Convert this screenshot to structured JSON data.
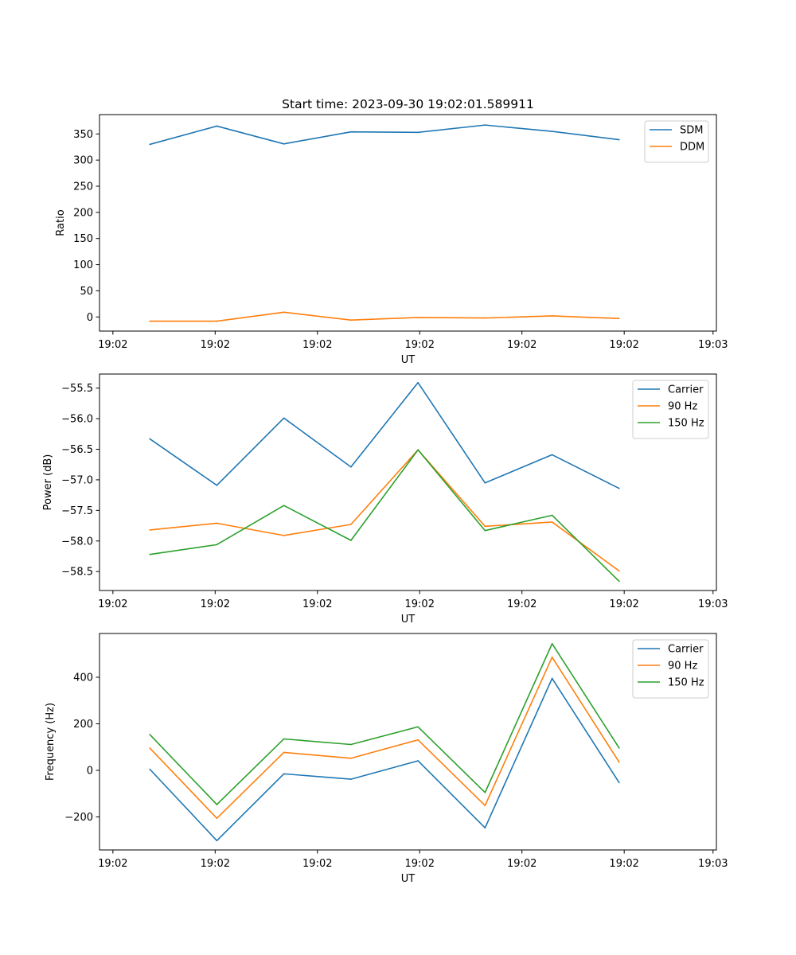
{
  "chart_data": [
    {
      "type": "line",
      "title": "Start time: 2023-09-30 19:02:01.589911",
      "xlabel": "UT",
      "ylabel": "Ratio",
      "x": [
        1,
        2,
        3,
        4,
        5,
        6,
        7,
        8
      ],
      "xlim": [
        0.25,
        9.45
      ],
      "xticks": [
        0.45,
        1.975,
        3.5,
        5.025,
        6.55,
        8.075,
        9.4
      ],
      "xtick_labels": [
        "19:02",
        "19:02",
        "19:02",
        "19:02",
        "19:02",
        "19:02",
        "19:03"
      ],
      "ylim": [
        -27,
        387
      ],
      "yticks": [
        0,
        50,
        100,
        150,
        200,
        250,
        300,
        350
      ],
      "ytick_labels": [
        "0",
        "50",
        "100",
        "150",
        "200",
        "250",
        "300",
        "350"
      ],
      "legend": "top-right",
      "series": [
        {
          "name": "SDM",
          "color": "#1f77b4",
          "values": [
            330,
            365,
            331,
            354,
            353,
            367,
            355,
            339
          ]
        },
        {
          "name": "DDM",
          "color": "#ff7f0e",
          "values": [
            -8,
            -8,
            9,
            -6,
            -1,
            -2,
            2,
            -3
          ]
        }
      ]
    },
    {
      "type": "line",
      "title": "",
      "xlabel": "UT",
      "ylabel": "Power (dB)",
      "x": [
        1,
        2,
        3,
        4,
        5,
        6,
        7,
        8
      ],
      "xlim": [
        0.25,
        9.45
      ],
      "xticks": [
        0.45,
        1.975,
        3.5,
        5.025,
        6.55,
        8.075,
        9.4
      ],
      "xtick_labels": [
        "19:02",
        "19:02",
        "19:02",
        "19:02",
        "19:02",
        "19:02",
        "19:03"
      ],
      "ylim": [
        -58.81,
        -55.27
      ],
      "yticks": [
        -58.5,
        -58.0,
        -57.5,
        -57.0,
        -56.5,
        -56.0,
        -55.5
      ],
      "ytick_labels": [
        "−58.5",
        "−58.0",
        "−57.5",
        "−57.0",
        "−56.5",
        "−56.0",
        "−55.5"
      ],
      "legend": "top-right",
      "series": [
        {
          "name": "Carrier",
          "color": "#1f77b4",
          "values": [
            -56.33,
            -57.09,
            -55.99,
            -56.79,
            -55.41,
            -57.05,
            -56.59,
            -57.14
          ]
        },
        {
          "name": "90 Hz",
          "color": "#ff7f0e",
          "values": [
            -57.82,
            -57.71,
            -57.91,
            -57.73,
            -56.51,
            -57.76,
            -57.69,
            -58.49
          ]
        },
        {
          "name": "150 Hz",
          "color": "#2ca02c",
          "values": [
            -58.22,
            -58.06,
            -57.42,
            -57.99,
            -56.51,
            -57.83,
            -57.58,
            -58.66
          ]
        }
      ]
    },
    {
      "type": "line",
      "title": "",
      "xlabel": "UT",
      "ylabel": "Frequency (Hz)",
      "x": [
        1,
        2,
        3,
        4,
        5,
        6,
        7,
        8
      ],
      "xlim": [
        0.25,
        9.45
      ],
      "xticks": [
        0.45,
        1.975,
        3.5,
        5.025,
        6.55,
        8.075,
        9.4
      ],
      "xtick_labels": [
        "19:02",
        "19:02",
        "19:02",
        "19:02",
        "19:02",
        "19:02",
        "19:03"
      ],
      "ylim": [
        -342,
        588
      ],
      "yticks": [
        -200,
        0,
        200,
        400
      ],
      "ytick_labels": [
        "−200",
        "0",
        "200",
        "400"
      ],
      "legend": "top-right",
      "series": [
        {
          "name": "Carrier",
          "color": "#1f77b4",
          "values": [
            5,
            -302,
            -15,
            -38,
            41,
            -247,
            395,
            -53
          ]
        },
        {
          "name": "90 Hz",
          "color": "#ff7f0e",
          "values": [
            96,
            -206,
            77,
            52,
            131,
            -151,
            486,
            35
          ]
        },
        {
          "name": "150 Hz",
          "color": "#2ca02c",
          "values": [
            154,
            -147,
            135,
            111,
            187,
            -95,
            544,
            96
          ]
        }
      ]
    }
  ]
}
